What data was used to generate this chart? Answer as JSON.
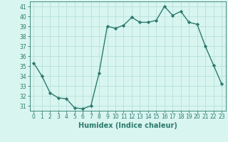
{
  "x": [
    0,
    1,
    2,
    3,
    4,
    5,
    6,
    7,
    8,
    9,
    10,
    11,
    12,
    13,
    14,
    15,
    16,
    17,
    18,
    19,
    20,
    21,
    22,
    23
  ],
  "y": [
    35.3,
    34.0,
    32.3,
    31.8,
    31.7,
    30.8,
    30.7,
    31.0,
    34.3,
    39.0,
    38.8,
    39.1,
    39.9,
    39.4,
    39.4,
    39.6,
    41.0,
    40.1,
    40.5,
    39.4,
    39.2,
    37.0,
    35.1,
    33.2
  ],
  "line_color": "#2d7a6e",
  "marker": "D",
  "marker_size": 2.2,
  "bg_color": "#d8f5f0",
  "grid_color": "#b0ddd6",
  "xlabel": "Humidex (Indice chaleur)",
  "ylabel": "",
  "ylim": [
    30.5,
    41.5
  ],
  "xlim": [
    -0.5,
    23.5
  ],
  "yticks": [
    31,
    32,
    33,
    34,
    35,
    36,
    37,
    38,
    39,
    40,
    41
  ],
  "xticks": [
    0,
    1,
    2,
    3,
    4,
    5,
    6,
    7,
    8,
    9,
    10,
    11,
    12,
    13,
    14,
    15,
    16,
    17,
    18,
    19,
    20,
    21,
    22,
    23
  ],
  "tick_color": "#2d7a6e",
  "tick_fontsize": 5.5,
  "xlabel_fontsize": 7.0,
  "linewidth": 1.0
}
